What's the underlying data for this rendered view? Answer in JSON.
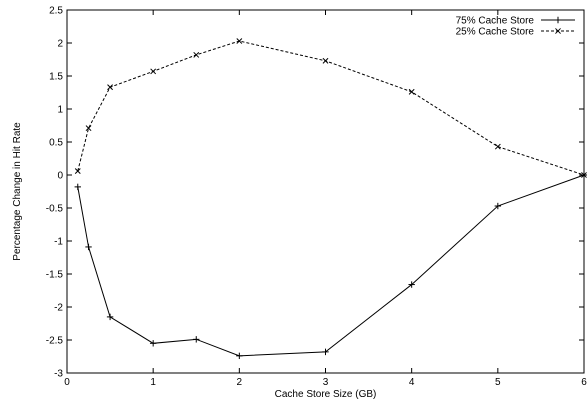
{
  "chart_data": {
    "type": "line",
    "xlabel": "Cache Store Size (GB)",
    "ylabel": "Percentage Change in Hit Rate",
    "xlim": [
      0,
      6
    ],
    "ylim": [
      -3,
      2.5
    ],
    "x_ticks": [
      0,
      1,
      2,
      3,
      4,
      5,
      6
    ],
    "y_ticks": [
      -3,
      -2.5,
      -2,
      -1.5,
      -1,
      -0.5,
      0,
      0.5,
      1,
      1.5,
      2,
      2.5
    ],
    "x_tick_labels": [
      "0",
      "1",
      "2",
      "3",
      "4",
      "5",
      "6"
    ],
    "y_tick_labels": [
      "-3",
      "-2.5",
      "-2",
      "-1.5",
      "-1",
      "-0.5",
      "0",
      "0.5",
      "1",
      "1.5",
      "2",
      "2.5"
    ],
    "grid": false,
    "legend_position": "top-right",
    "series": [
      {
        "name": "75% Cache Store",
        "marker": "plus",
        "line_style": "solid",
        "color": "#000000",
        "x": [
          0.125,
          0.25,
          0.5,
          1,
          1.5,
          2,
          3,
          4,
          5,
          6
        ],
        "y": [
          -0.18,
          -1.09,
          -2.15,
          -2.55,
          -2.49,
          -2.74,
          -2.68,
          -1.66,
          -0.47,
          0.0
        ]
      },
      {
        "name": "25% Cache Store",
        "marker": "x",
        "line_style": "dashed",
        "color": "#000000",
        "x": [
          0.125,
          0.25,
          0.5,
          1,
          1.5,
          2,
          3,
          4,
          5,
          6
        ],
        "y": [
          0.06,
          0.71,
          1.33,
          1.57,
          1.82,
          2.03,
          1.73,
          1.26,
          0.43,
          0.0
        ]
      }
    ]
  }
}
